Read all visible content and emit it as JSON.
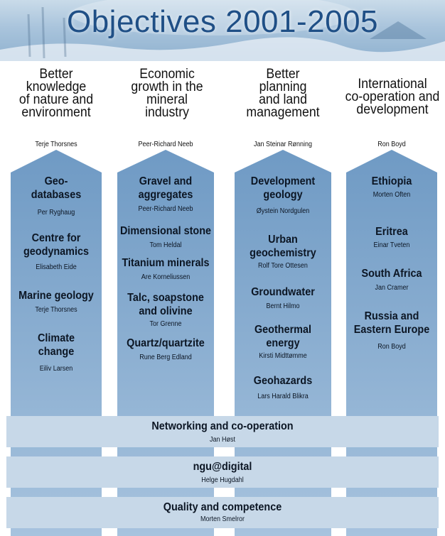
{
  "banner": {
    "title": "Objectives 2001-2005"
  },
  "columns": [
    {
      "title": [
        "Better",
        "knowledge",
        "of nature and",
        "environment"
      ],
      "leader": "Terje Thorsnes",
      "items": [
        {
          "title": [
            "Geo-",
            "databases"
          ],
          "person": "Per Ryghaug"
        },
        {
          "title": [
            "Centre for",
            "geodynamics"
          ],
          "person": "Elisabeth Eide"
        },
        {
          "title": [
            "Marine geology"
          ],
          "person": "Terje Thorsnes"
        },
        {
          "title": [
            "Climate",
            "change"
          ],
          "person": "Eiliv Larsen"
        }
      ]
    },
    {
      "title": [
        "Economic",
        "growth in the",
        "mineral",
        "industry"
      ],
      "leader": "Peer-Richard Neeb",
      "items": [
        {
          "title": [
            "Gravel and",
            "aggregates"
          ],
          "person": "Peer-Richard Neeb"
        },
        {
          "title": [
            "Dimensional stone"
          ],
          "person": "Tom Heldal"
        },
        {
          "title": [
            "Titanium minerals"
          ],
          "person": "Are Korneliussen"
        },
        {
          "title": [
            "Talc, soapstone",
            "and olivine"
          ],
          "person": "Tor Grenne"
        },
        {
          "title": [
            "Quartz/quartzite"
          ],
          "person": "Rune  Berg Edland"
        }
      ]
    },
    {
      "title": [
        "Better",
        "planning",
        "and land",
        "management"
      ],
      "leader": "Jan Steinar Rønning",
      "items": [
        {
          "title": [
            "Development",
            "geology"
          ],
          "person": "Øystein Nordgulen"
        },
        {
          "title": [
            "Urban",
            "geochemistry"
          ],
          "person": "Rolf Tore Ottesen"
        },
        {
          "title": [
            "Groundwater"
          ],
          "person": "Bernt Hilmo"
        },
        {
          "title": [
            "Geothermal",
            "energy"
          ],
          "person": "Kirsti Midttømme"
        },
        {
          "title": [
            "Geohazards"
          ],
          "person": "Lars Harald Blikra"
        }
      ]
    },
    {
      "title": [
        "International",
        "co-operation and",
        "development"
      ],
      "leader": "Ron Boyd",
      "items": [
        {
          "title": [
            "Ethiopia"
          ],
          "person": "Morten Often"
        },
        {
          "title": [
            "Eritrea"
          ],
          "person": "Einar Tveten"
        },
        {
          "title": [
            "South Africa"
          ],
          "person": "Jan Cramer"
        },
        {
          "title": [
            "Russia and",
            "Eastern Europe"
          ],
          "person": "Ron Boyd"
        }
      ]
    }
  ],
  "bands": [
    {
      "title": "Networking and co-operation",
      "person": "Jan Høst"
    },
    {
      "title": "ngu@digital",
      "person": "Helge Hugdahl"
    },
    {
      "title": "Quality and competence",
      "person": "Morten Smelror"
    }
  ],
  "colors": {
    "title_blue": "#1f4f86",
    "pillar_top": "#6f9ac4",
    "pillar_bottom": "#a7c3de",
    "band": "#c7d8e8"
  }
}
